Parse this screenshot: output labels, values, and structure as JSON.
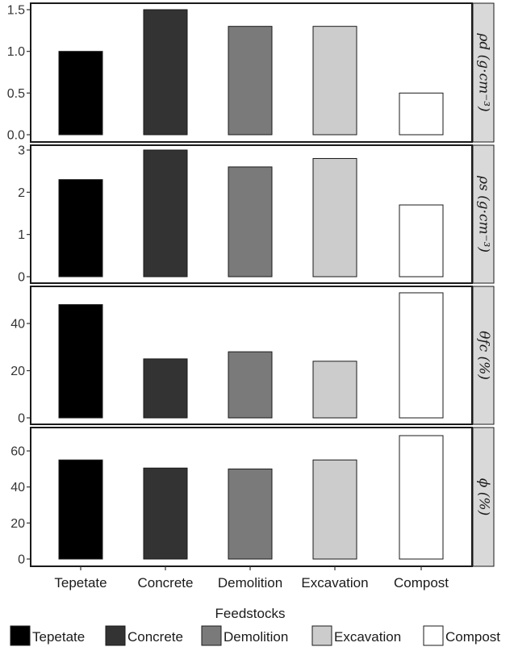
{
  "chart_data": {
    "type": "bar",
    "categories": [
      "Tepetate",
      "Concrete",
      "Demolition",
      "Excavation",
      "Compost"
    ],
    "colors": [
      "#000000",
      "#333333",
      "#7a7a7a",
      "#cccccc",
      "#ffffff"
    ],
    "xlabel": "Feedstocks",
    "legend": {
      "title": "",
      "position": "bottom",
      "items": [
        "Tepetate",
        "Concrete",
        "Demolition",
        "Excavation",
        "Compost"
      ]
    },
    "panels": [
      {
        "strip_label": "ρd (g·cm⁻³)",
        "ylim": [
          0,
          1.55
        ],
        "ticks": [
          0.0,
          0.5,
          1.0,
          1.5
        ],
        "tick_labels": [
          "0.0",
          "0.5",
          "1.0",
          "1.5"
        ],
        "values": [
          1.0,
          1.5,
          1.3,
          1.3,
          0.5
        ]
      },
      {
        "strip_label": "ρs (g·cm⁻³)",
        "ylim": [
          0,
          3.1
        ],
        "ticks": [
          0,
          1,
          2,
          3
        ],
        "tick_labels": [
          "0",
          "1",
          "2",
          "3"
        ],
        "values": [
          2.3,
          3.0,
          2.6,
          2.8,
          1.7
        ]
      },
      {
        "strip_label": "θfc (%)",
        "ylim": [
          0,
          55
        ],
        "ticks": [
          0,
          20,
          40
        ],
        "tick_labels": [
          "0",
          "20",
          "40"
        ],
        "values": [
          48,
          25,
          28,
          24,
          53
        ]
      },
      {
        "strip_label": "ϕ (%)",
        "ylim": [
          0,
          70
        ],
        "ticks": [
          0,
          20,
          40,
          60
        ],
        "tick_labels": [
          "0",
          "20",
          "40",
          "60"
        ],
        "values": [
          55,
          50.5,
          50,
          55,
          68.5
        ]
      }
    ]
  }
}
